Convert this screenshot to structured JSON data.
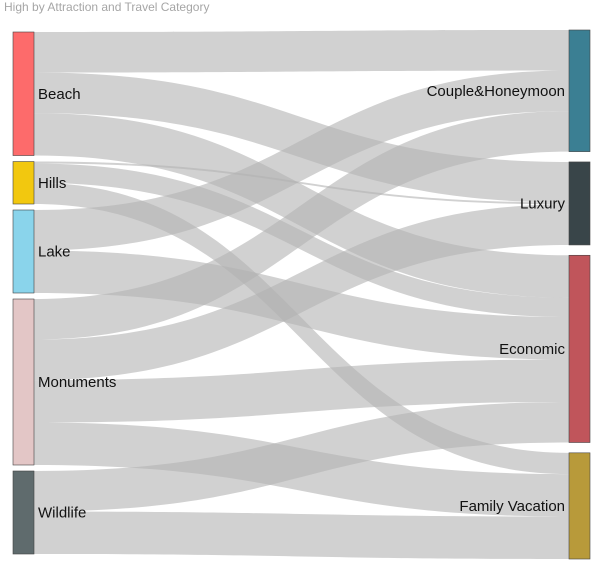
{
  "chart_data": {
    "type": "sankey",
    "title": "High by Attraction and Travel Category",
    "sources": [
      {
        "name": "Beach",
        "color": "#fd6b6b"
      },
      {
        "name": "Hills",
        "color": "#f2c80f"
      },
      {
        "name": "Lake",
        "color": "#8ad4eb"
      },
      {
        "name": "Monuments",
        "color": "#e3c6c6"
      },
      {
        "name": "Wildlife",
        "color": "#5f6b6d"
      }
    ],
    "targets": [
      {
        "name": "Couple&Honeymoon",
        "color": "#3b7f93"
      },
      {
        "name": "Luxury",
        "color": "#394549"
      },
      {
        "name": "Economic",
        "color": "#c0555b"
      },
      {
        "name": "Family Vacation",
        "color": "#b89a3a"
      }
    ],
    "links": [
      {
        "source": "Beach",
        "target": "Couple&Honeymoon",
        "value": 42
      },
      {
        "source": "Beach",
        "target": "Luxury",
        "value": 42
      },
      {
        "source": "Beach",
        "target": "Economic",
        "value": 44
      },
      {
        "source": "Hills",
        "target": "Luxury",
        "value": 2
      },
      {
        "source": "Hills",
        "target": "Economic",
        "value": 20
      },
      {
        "source": "Hills",
        "target": "Family Vacation",
        "value": 22
      },
      {
        "source": "Lake",
        "target": "Couple&Honeymoon",
        "value": 42
      },
      {
        "source": "Lake",
        "target": "Economic",
        "value": 44
      },
      {
        "source": "Monuments",
        "target": "Couple&Honeymoon",
        "value": 42
      },
      {
        "source": "Monuments",
        "target": "Luxury",
        "value": 42
      },
      {
        "source": "Monuments",
        "target": "Economic",
        "value": 44
      },
      {
        "source": "Monuments",
        "target": "Family Vacation",
        "value": 44
      },
      {
        "source": "Wildlife",
        "target": "Economic",
        "value": 42
      },
      {
        "source": "Wildlife",
        "target": "Family Vacation",
        "value": 44
      }
    ]
  }
}
